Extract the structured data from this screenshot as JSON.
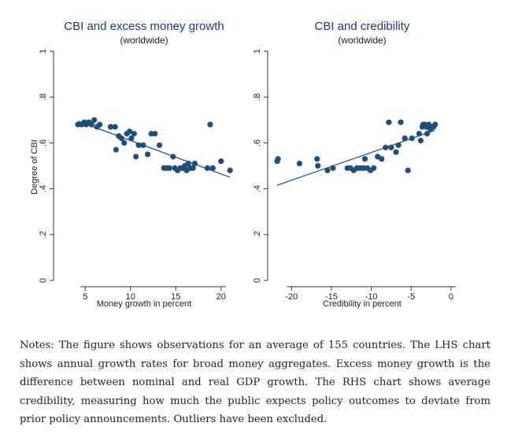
{
  "chart_data": [
    {
      "type": "scatter",
      "title": "CBI and excess money growth",
      "subtitle": "(worldwide)",
      "xlabel": "Money growth in percent",
      "ylabel": "Degree of CBI",
      "x_ticks": [
        5,
        10,
        15,
        20
      ],
      "y_ticks": [
        0,
        0.2,
        0.4,
        0.6,
        0.8,
        1
      ],
      "y_tick_labels": [
        "0",
        ".2",
        ".4",
        ".6",
        ".8",
        "1"
      ],
      "xlim": [
        1.5,
        21.5
      ],
      "ylim": [
        0,
        1
      ],
      "grid": false,
      "point_color": "#1f4e79",
      "line_color": "#1f4e79",
      "points": [
        [
          4.2,
          0.68
        ],
        [
          4.6,
          0.68
        ],
        [
          4.9,
          0.69
        ],
        [
          5.1,
          0.68
        ],
        [
          5.4,
          0.69
        ],
        [
          5.7,
          0.68
        ],
        [
          6.0,
          0.7
        ],
        [
          6.3,
          0.67
        ],
        [
          6.6,
          0.68
        ],
        [
          7.8,
          0.67
        ],
        [
          8.3,
          0.67
        ],
        [
          8.4,
          0.57
        ],
        [
          8.7,
          0.63
        ],
        [
          9.0,
          0.62
        ],
        [
          9.3,
          0.6
        ],
        [
          9.6,
          0.64
        ],
        [
          9.9,
          0.65
        ],
        [
          10.1,
          0.62
        ],
        [
          10.4,
          0.64
        ],
        [
          10.6,
          0.54
        ],
        [
          10.9,
          0.59
        ],
        [
          11.4,
          0.59
        ],
        [
          11.9,
          0.55
        ],
        [
          12.3,
          0.64
        ],
        [
          12.7,
          0.64
        ],
        [
          13.2,
          0.59
        ],
        [
          13.7,
          0.49
        ],
        [
          14.0,
          0.49
        ],
        [
          14.3,
          0.49
        ],
        [
          14.7,
          0.54
        ],
        [
          14.9,
          0.49
        ],
        [
          15.2,
          0.48
        ],
        [
          15.5,
          0.49
        ],
        [
          15.8,
          0.49
        ],
        [
          16.0,
          0.5
        ],
        [
          16.2,
          0.48
        ],
        [
          16.4,
          0.51
        ],
        [
          16.6,
          0.49
        ],
        [
          16.9,
          0.49
        ],
        [
          17.1,
          0.51
        ],
        [
          18.5,
          0.49
        ],
        [
          18.8,
          0.68
        ],
        [
          19.1,
          0.49
        ],
        [
          20.0,
          0.52
        ],
        [
          21.0,
          0.48
        ]
      ],
      "fit_line": [
        [
          4.2,
          0.695
        ],
        [
          21.0,
          0.45
        ]
      ]
    },
    {
      "type": "scatter",
      "title": "CBI and credibility",
      "subtitle": "(worldwide)",
      "xlabel": "Credibility in percent",
      "ylabel": "",
      "x_ticks": [
        -20,
        -15,
        -10,
        -5,
        0
      ],
      "y_ticks": [
        0,
        0.2,
        0.4,
        0.6,
        0.8,
        1
      ],
      "y_tick_labels": [
        "0",
        ".2",
        ".4",
        ".6",
        ".8",
        "1"
      ],
      "xlim": [
        -22.5,
        0.7
      ],
      "ylim": [
        0,
        1
      ],
      "grid": false,
      "point_color": "#1f4e79",
      "line_color": "#1f4e79",
      "points": [
        [
          -21.8,
          0.52
        ],
        [
          -21.7,
          0.53
        ],
        [
          -19.0,
          0.51
        ],
        [
          -16.8,
          0.53
        ],
        [
          -16.7,
          0.5
        ],
        [
          -15.5,
          0.48
        ],
        [
          -14.8,
          0.49
        ],
        [
          -13.0,
          0.49
        ],
        [
          -12.6,
          0.49
        ],
        [
          -12.2,
          0.48
        ],
        [
          -11.8,
          0.49
        ],
        [
          -11.4,
          0.49
        ],
        [
          -11.0,
          0.49
        ],
        [
          -10.8,
          0.53
        ],
        [
          -10.5,
          0.49
        ],
        [
          -10.1,
          0.48
        ],
        [
          -9.7,
          0.49
        ],
        [
          -9.2,
          0.54
        ],
        [
          -8.7,
          0.53
        ],
        [
          -8.2,
          0.58
        ],
        [
          -7.8,
          0.69
        ],
        [
          -7.5,
          0.58
        ],
        [
          -6.9,
          0.56
        ],
        [
          -6.6,
          0.59
        ],
        [
          -6.3,
          0.69
        ],
        [
          -5.8,
          0.62
        ],
        [
          -5.4,
          0.48
        ],
        [
          -4.9,
          0.62
        ],
        [
          -4.0,
          0.64
        ],
        [
          -3.8,
          0.61
        ],
        [
          -3.6,
          0.67
        ],
        [
          -3.5,
          0.68
        ],
        [
          -3.3,
          0.68
        ],
        [
          -3.1,
          0.67
        ],
        [
          -3.0,
          0.64
        ],
        [
          -2.8,
          0.68
        ],
        [
          -2.6,
          0.66
        ],
        [
          -2.4,
          0.67
        ],
        [
          -2.2,
          0.67
        ],
        [
          -2.0,
          0.68
        ]
      ],
      "fit_line": [
        [
          -21.8,
          0.415
        ],
        [
          -2.0,
          0.655
        ]
      ]
    }
  ],
  "notes": "Notes: The figure shows observations for an average of 155 countries. The LHS chart shows annual growth rates for broad money aggregates. Excess money growth is the difference between nominal and real GDP growth. The RHS chart shows average credibility, measuring how much the public expects policy outcomes to deviate from prior policy announcements. Outliers have been excluded."
}
